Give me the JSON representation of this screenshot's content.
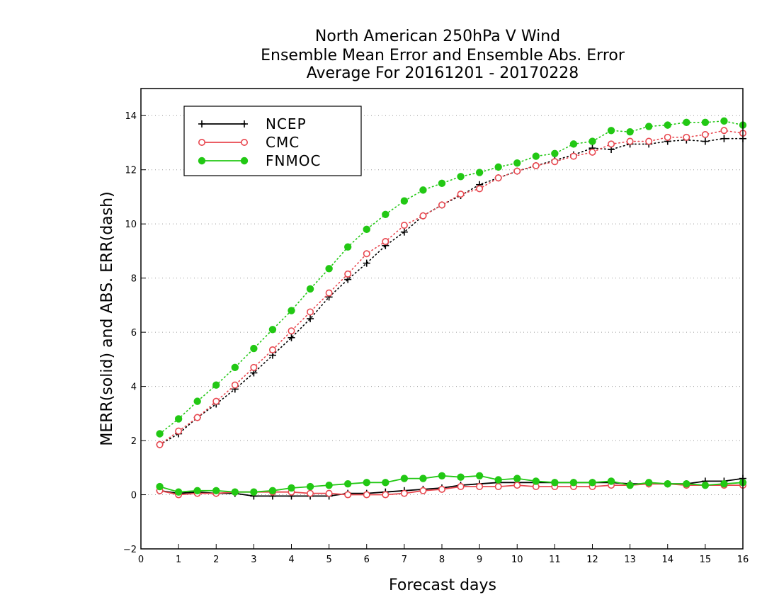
{
  "chart_data": {
    "type": "line",
    "title": [
      "North American 250hPa V Wind",
      "Ensemble Mean Error and Ensemble Abs. Error",
      "Average For 20161201 - 20170228"
    ],
    "xlabel": "Forecast days",
    "ylabel": "MERR(solid) and ABS. ERR(dash)",
    "xlim": [
      0,
      16
    ],
    "ylim": [
      -2,
      15
    ],
    "x_ticks": [
      0,
      1,
      2,
      3,
      4,
      5,
      6,
      7,
      8,
      9,
      10,
      11,
      12,
      13,
      14,
      15,
      16
    ],
    "y_ticks": [
      -2,
      0,
      2,
      4,
      6,
      8,
      10,
      12,
      14
    ],
    "y_tick_labels": [
      "−2",
      "0",
      "2",
      "4",
      "6",
      "8",
      "10",
      "12",
      "14"
    ],
    "grid": "horizontal dotted",
    "legend_placement": "top-left",
    "x": [
      0.5,
      1,
      1.5,
      2,
      2.5,
      3,
      3.5,
      4,
      4.5,
      5,
      5.5,
      6,
      6.5,
      7,
      7.5,
      8,
      8.5,
      9,
      9.5,
      10,
      10.5,
      11,
      11.5,
      12,
      12.5,
      13,
      13.5,
      14,
      14.5,
      15,
      15.5,
      16
    ],
    "series": [
      {
        "name": "NCEP",
        "color": "#000000",
        "marker": "plus",
        "mean_error": [
          0.15,
          0.05,
          0.1,
          0.05,
          0.05,
          -0.05,
          -0.05,
          -0.05,
          -0.05,
          -0.05,
          0.05,
          0.05,
          0.1,
          0.15,
          0.2,
          0.25,
          0.35,
          0.4,
          0.45,
          0.45,
          0.45,
          0.45,
          0.45,
          0.45,
          0.45,
          0.4,
          0.4,
          0.4,
          0.4,
          0.5,
          0.5,
          0.6
        ],
        "abs_error": [
          1.85,
          2.25,
          2.85,
          3.35,
          3.9,
          4.5,
          5.15,
          5.8,
          6.5,
          7.3,
          7.95,
          8.55,
          9.2,
          9.7,
          10.3,
          10.7,
          11.05,
          11.45,
          11.7,
          11.95,
          12.15,
          12.35,
          12.55,
          12.8,
          12.75,
          12.95,
          12.95,
          13.05,
          13.1,
          13.05,
          13.15,
          13.15
        ]
      },
      {
        "name": "CMC",
        "color": "#e8474f",
        "marker": "open-circle",
        "mean_error": [
          0.15,
          0.0,
          0.05,
          0.05,
          0.1,
          0.1,
          0.1,
          0.1,
          0.05,
          0.05,
          0.0,
          0.0,
          0.0,
          0.05,
          0.15,
          0.2,
          0.3,
          0.3,
          0.3,
          0.35,
          0.3,
          0.3,
          0.3,
          0.3,
          0.35,
          0.35,
          0.4,
          0.4,
          0.35,
          0.35,
          0.35,
          0.35
        ],
        "abs_error": [
          1.85,
          2.35,
          2.85,
          3.45,
          4.05,
          4.7,
          5.35,
          6.05,
          6.75,
          7.45,
          8.15,
          8.9,
          9.35,
          9.95,
          10.3,
          10.7,
          11.1,
          11.3,
          11.7,
          11.95,
          12.15,
          12.3,
          12.5,
          12.65,
          12.95,
          13.05,
          13.05,
          13.2,
          13.2,
          13.3,
          13.45,
          13.35
        ]
      },
      {
        "name": "FNMOC",
        "color": "#22c814",
        "marker": "filled-circle",
        "mean_error": [
          0.3,
          0.1,
          0.15,
          0.15,
          0.1,
          0.1,
          0.15,
          0.25,
          0.3,
          0.35,
          0.4,
          0.45,
          0.45,
          0.6,
          0.6,
          0.7,
          0.65,
          0.7,
          0.55,
          0.6,
          0.5,
          0.45,
          0.45,
          0.45,
          0.5,
          0.35,
          0.45,
          0.4,
          0.4,
          0.35,
          0.4,
          0.45
        ],
        "abs_error": [
          2.25,
          2.8,
          3.45,
          4.05,
          4.7,
          5.4,
          6.1,
          6.8,
          7.6,
          8.35,
          9.15,
          9.8,
          10.35,
          10.85,
          11.25,
          11.5,
          11.75,
          11.9,
          12.1,
          12.25,
          12.5,
          12.6,
          12.95,
          13.05,
          13.45,
          13.4,
          13.6,
          13.65,
          13.75,
          13.75,
          13.8,
          13.65
        ]
      }
    ]
  }
}
